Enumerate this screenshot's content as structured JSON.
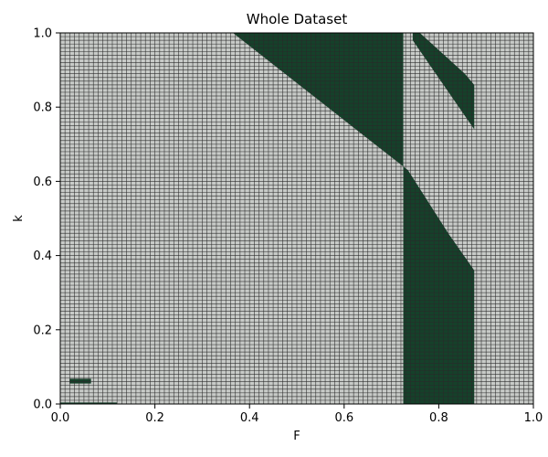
{
  "chart_data": {
    "type": "heatmap",
    "title": "Whole Dataset",
    "xlabel": "F",
    "ylabel": "k",
    "xlim": [
      0.0,
      1.0
    ],
    "ylim": [
      0.0,
      1.0
    ],
    "x_ticks": [
      "0.0",
      "0.2",
      "0.4",
      "0.6",
      "0.8",
      "1.0"
    ],
    "y_ticks": [
      "0.0",
      "0.2",
      "0.4",
      "0.6",
      "0.8",
      "1.0"
    ],
    "grid": true,
    "grid_cells": 100,
    "colors": {
      "background_cell": "#c8cbc8",
      "highlight_cell": "#15412a",
      "grid_line": "#2a2a2a"
    },
    "regions": [
      {
        "name": "upper-triangle",
        "polygon": [
          [
            0.365,
            1.0
          ],
          [
            0.725,
            1.0
          ],
          [
            0.725,
            0.64
          ]
        ]
      },
      {
        "name": "upper-right-band",
        "polygon": [
          [
            0.745,
            1.0
          ],
          [
            0.76,
            1.0
          ],
          [
            0.855,
            0.89
          ],
          [
            0.875,
            0.86
          ],
          [
            0.875,
            0.74
          ],
          [
            0.745,
            0.98
          ]
        ]
      },
      {
        "name": "lower-band",
        "polygon": [
          [
            0.725,
            0.0
          ],
          [
            0.875,
            0.0
          ],
          [
            0.875,
            0.36
          ],
          [
            0.82,
            0.46
          ],
          [
            0.735,
            0.63
          ],
          [
            0.725,
            0.64
          ]
        ]
      },
      {
        "name": "small-bar",
        "polygon": [
          [
            0.02,
            0.055
          ],
          [
            0.065,
            0.055
          ],
          [
            0.065,
            0.068
          ],
          [
            0.02,
            0.068
          ]
        ]
      },
      {
        "name": "bottom-strip",
        "polygon": [
          [
            0.0,
            0.0
          ],
          [
            0.12,
            0.0
          ],
          [
            0.12,
            0.004
          ],
          [
            0.0,
            0.004
          ]
        ]
      }
    ]
  }
}
